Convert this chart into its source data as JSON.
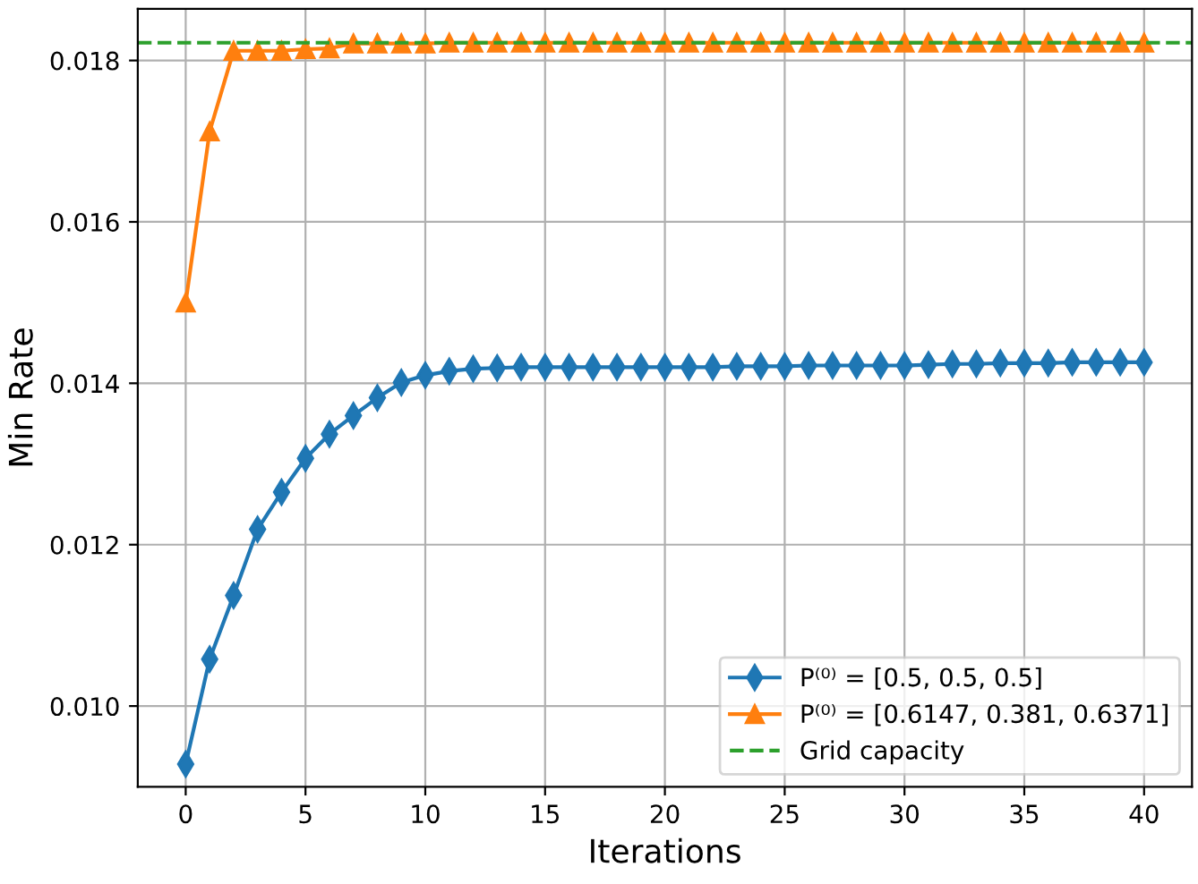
{
  "chart_data": {
    "type": "line",
    "xlabel": "Iterations",
    "ylabel": "Min Rate",
    "x": [
      0,
      1,
      2,
      3,
      4,
      5,
      6,
      7,
      8,
      9,
      10,
      11,
      12,
      13,
      14,
      15,
      16,
      17,
      18,
      19,
      20,
      21,
      22,
      23,
      24,
      25,
      26,
      27,
      28,
      29,
      30,
      31,
      32,
      33,
      34,
      35,
      36,
      37,
      38,
      39,
      40
    ],
    "series": [
      {
        "name": "P⁽⁰⁾ = [0.5, 0.5, 0.5]",
        "color": "#1f77b4",
        "marker": "diamond",
        "values": [
          0.00928,
          0.01058,
          0.01137,
          0.01219,
          0.01265,
          0.01307,
          0.01337,
          0.0136,
          0.01382,
          0.01401,
          0.0141,
          0.01415,
          0.01418,
          0.01419,
          0.0142,
          0.0142,
          0.0142,
          0.0142,
          0.0142,
          0.0142,
          0.0142,
          0.0142,
          0.0142,
          0.01421,
          0.01421,
          0.01421,
          0.01422,
          0.01422,
          0.01422,
          0.01422,
          0.01422,
          0.01423,
          0.01424,
          0.01424,
          0.01425,
          0.01425,
          0.01425,
          0.01426,
          0.01426,
          0.01426,
          0.01426
        ]
      },
      {
        "name": "P⁽⁰⁾ = [0.6147, 0.381, 0.6371]",
        "color": "#ff7f0e",
        "marker": "triangle",
        "values": [
          0.015,
          0.01712,
          0.01812,
          0.01812,
          0.01812,
          0.01814,
          0.01815,
          0.01821,
          0.01821,
          0.01821,
          0.01821,
          0.01822,
          0.01822,
          0.01822,
          0.01822,
          0.01822,
          0.01822,
          0.01822,
          0.01822,
          0.01822,
          0.01822,
          0.01822,
          0.01822,
          0.01822,
          0.01822,
          0.01822,
          0.01822,
          0.01822,
          0.01822,
          0.01822,
          0.01822,
          0.01822,
          0.01822,
          0.01822,
          0.01822,
          0.01822,
          0.01822,
          0.01822,
          0.01822,
          0.01822,
          0.01822
        ]
      }
    ],
    "ref_lines": [
      {
        "axis": "y",
        "value": 0.01822,
        "label": "Grid capacity",
        "color": "#2ca02c",
        "line_style": "dashed"
      }
    ],
    "xlim": [
      -2,
      42
    ],
    "ylim": [
      0.009,
      0.01864
    ],
    "xticks": [
      0,
      5,
      10,
      15,
      20,
      25,
      30,
      35,
      40
    ],
    "yticks": [
      {
        "value": 0.01,
        "label": "0.010"
      },
      {
        "value": 0.012,
        "label": "0.012"
      },
      {
        "value": 0.014,
        "label": "0.014"
      },
      {
        "value": 0.016,
        "label": "0.016"
      },
      {
        "value": 0.018,
        "label": "0.018"
      }
    ],
    "grid": true,
    "legend": "lower right"
  }
}
